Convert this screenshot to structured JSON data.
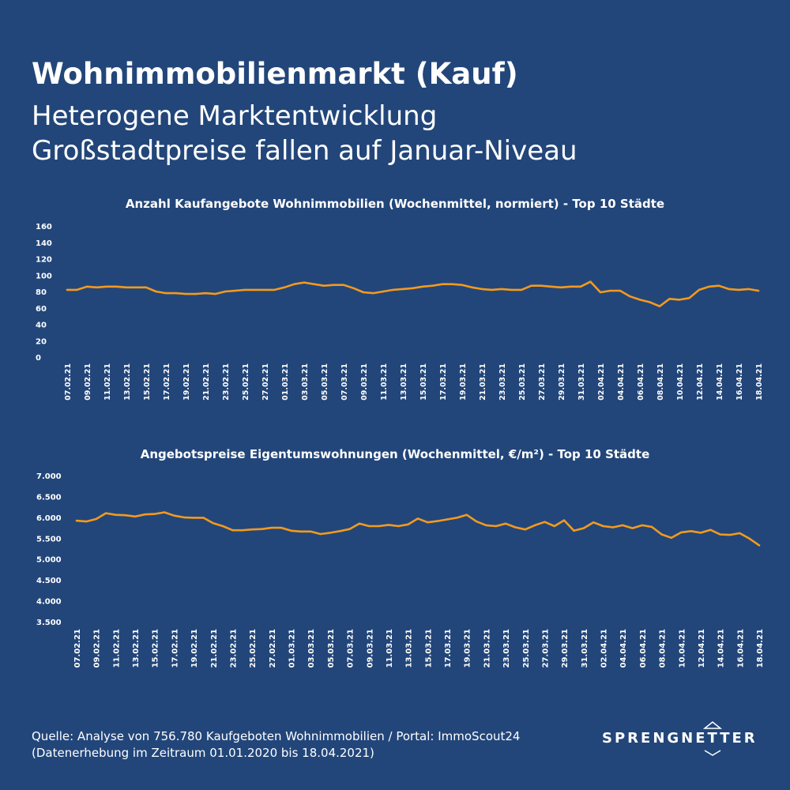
{
  "header": {
    "title": "Wohnimmobilienmarkt (Kauf)",
    "subtitle_1": "Heterogene Marktentwicklung",
    "subtitle_2": "Großstadtpreise fallen auf Januar-Niveau"
  },
  "footer": {
    "source_line_1": "Quelle: Analyse von  756.780 Kaufgeboten Wohnimmobilien / Portal: ImmoScout24",
    "source_line_2": "(Datenerhebung im Zeitraum 01.01.2020 bis 18.04.2021)",
    "logo_text": "SPRENGNETTER"
  },
  "colors": {
    "background": "#22467a",
    "line": "#f39a1e",
    "text": "#ffffff"
  },
  "chart_data": [
    {
      "type": "line",
      "title": "Anzahl Kaufangebote Wohnimmobilien (Wochenmittel, normiert) - Top 10 Städte",
      "x": [
        "07.02.21",
        "08.02.21",
        "09.02.21",
        "10.02.21",
        "11.02.21",
        "12.02.21",
        "13.02.21",
        "14.02.21",
        "15.02.21",
        "16.02.21",
        "17.02.21",
        "18.02.21",
        "19.02.21",
        "20.02.21",
        "21.02.21",
        "22.02.21",
        "23.02.21",
        "24.02.21",
        "25.02.21",
        "26.02.21",
        "27.02.21",
        "28.02.21",
        "01.03.21",
        "02.03.21",
        "03.03.21",
        "04.03.21",
        "05.03.21",
        "06.03.21",
        "07.03.21",
        "08.03.21",
        "09.03.21",
        "10.03.21",
        "11.03.21",
        "12.03.21",
        "13.03.21",
        "14.03.21",
        "15.03.21",
        "16.03.21",
        "17.03.21",
        "18.03.21",
        "19.03.21",
        "20.03.21",
        "21.03.21",
        "22.03.21",
        "23.03.21",
        "24.03.21",
        "25.03.21",
        "26.03.21",
        "27.03.21",
        "28.03.21",
        "29.03.21",
        "30.03.21",
        "31.03.21",
        "01.04.21",
        "02.04.21",
        "03.04.21",
        "04.04.21",
        "05.04.21",
        "06.04.21",
        "07.04.21",
        "08.04.21",
        "09.04.21",
        "10.04.21",
        "11.04.21",
        "12.04.21",
        "13.04.21",
        "14.04.21",
        "15.04.21",
        "16.04.21",
        "17.04.21",
        "18.04.21"
      ],
      "tick_labels": [
        "07.02.21",
        "09.02.21",
        "11.02.21",
        "13.02.21",
        "15.02.21",
        "17.02.21",
        "19.02.21",
        "21.02.21",
        "23.02.21",
        "25.02.21",
        "27.02.21",
        "01.03.21",
        "03.03.21",
        "05.03.21",
        "07.03.21",
        "09.03.21",
        "11.03.21",
        "13.03.21",
        "15.03.21",
        "17.03.21",
        "19.03.21",
        "21.03.21",
        "23.03.21",
        "25.03.21",
        "27.03.21",
        "29.03.21",
        "31.03.21",
        "02.04.21",
        "04.04.21",
        "06.04.21",
        "08.04.21",
        "10.04.21",
        "12.04.21",
        "14.04.21",
        "16.04.21",
        "18.04.21"
      ],
      "values": [
        82,
        82,
        86,
        85,
        86,
        86,
        85,
        85,
        85,
        80,
        78,
        78,
        77,
        77,
        78,
        77,
        80,
        81,
        82,
        82,
        82,
        82,
        85,
        89,
        91,
        89,
        87,
        88,
        88,
        84,
        79,
        78,
        80,
        82,
        83,
        84,
        86,
        87,
        89,
        89,
        88,
        85,
        83,
        82,
        83,
        82,
        82,
        87,
        87,
        86,
        85,
        86,
        86,
        92,
        79,
        81,
        81,
        74,
        70,
        67,
        62,
        71,
        70,
        72,
        82,
        86,
        87,
        83,
        82,
        83,
        81
      ],
      "y_ticks": [
        "160",
        "140",
        "120",
        "100",
        "80",
        "60",
        "40",
        "20",
        "0"
      ],
      "ylim": [
        0,
        160
      ],
      "xlabel": "",
      "ylabel": "",
      "grid": false
    },
    {
      "type": "line",
      "title": "Angebotspreise Eigentumswohnungen (Wochenmittel, €/m²) - Top 10 Städte",
      "x": [
        "07.02.21",
        "08.02.21",
        "09.02.21",
        "10.02.21",
        "11.02.21",
        "12.02.21",
        "13.02.21",
        "14.02.21",
        "15.02.21",
        "16.02.21",
        "17.02.21",
        "18.02.21",
        "19.02.21",
        "20.02.21",
        "21.02.21",
        "22.02.21",
        "23.02.21",
        "24.02.21",
        "25.02.21",
        "26.02.21",
        "27.02.21",
        "28.02.21",
        "01.03.21",
        "02.03.21",
        "03.03.21",
        "04.03.21",
        "05.03.21",
        "06.03.21",
        "07.03.21",
        "08.03.21",
        "09.03.21",
        "10.03.21",
        "11.03.21",
        "12.03.21",
        "13.03.21",
        "14.03.21",
        "15.03.21",
        "16.03.21",
        "17.03.21",
        "18.03.21",
        "19.03.21",
        "20.03.21",
        "21.03.21",
        "22.03.21",
        "23.03.21",
        "24.03.21",
        "25.03.21",
        "26.03.21",
        "27.03.21",
        "28.03.21",
        "29.03.21",
        "30.03.21",
        "31.03.21",
        "01.04.21",
        "02.04.21",
        "03.04.21",
        "04.04.21",
        "05.04.21",
        "06.04.21",
        "07.04.21",
        "08.04.21",
        "09.04.21",
        "10.04.21",
        "11.04.21",
        "12.04.21",
        "13.04.21",
        "14.04.21",
        "15.04.21",
        "16.04.21",
        "17.04.21",
        "18.04.21"
      ],
      "tick_labels": [
        "07.02.21",
        "09.02.21",
        "11.02.21",
        "13.02.21",
        "15.02.21",
        "17.02.21",
        "19.02.21",
        "21.02.21",
        "23.02.21",
        "25.02.21",
        "27.02.21",
        "01.03.21",
        "03.03.21",
        "05.03.21",
        "07.03.21",
        "09.03.21",
        "11.03.21",
        "13.03.21",
        "15.03.21",
        "17.03.21",
        "19.03.21",
        "21.03.21",
        "23.03.21",
        "25.03.21",
        "27.03.21",
        "29.03.21",
        "31.03.21",
        "02.04.21",
        "04.04.21",
        "06.04.21",
        "08.04.21",
        "10.04.21",
        "12.04.21",
        "14.04.21",
        "16.04.21",
        "18.04.21"
      ],
      "values": [
        5920,
        5900,
        5960,
        6100,
        6060,
        6050,
        6020,
        6070,
        6080,
        6120,
        6040,
        6000,
        5990,
        5990,
        5860,
        5790,
        5690,
        5690,
        5710,
        5720,
        5750,
        5750,
        5680,
        5660,
        5660,
        5600,
        5630,
        5670,
        5720,
        5850,
        5790,
        5790,
        5820,
        5790,
        5830,
        5970,
        5880,
        5910,
        5950,
        5990,
        6060,
        5900,
        5810,
        5790,
        5850,
        5760,
        5710,
        5810,
        5890,
        5790,
        5930,
        5680,
        5740,
        5880,
        5790,
        5760,
        5810,
        5740,
        5810,
        5770,
        5590,
        5510,
        5640,
        5670,
        5630,
        5700,
        5590,
        5580,
        5620,
        5490,
        5330
      ],
      "y_ticks": [
        "7.000",
        "6.500",
        "6.000",
        "5.500",
        "5.000",
        "4.500",
        "4.000",
        "3.500"
      ],
      "ylim": [
        3500,
        7000
      ],
      "xlabel": "",
      "ylabel": "",
      "grid": false
    }
  ]
}
